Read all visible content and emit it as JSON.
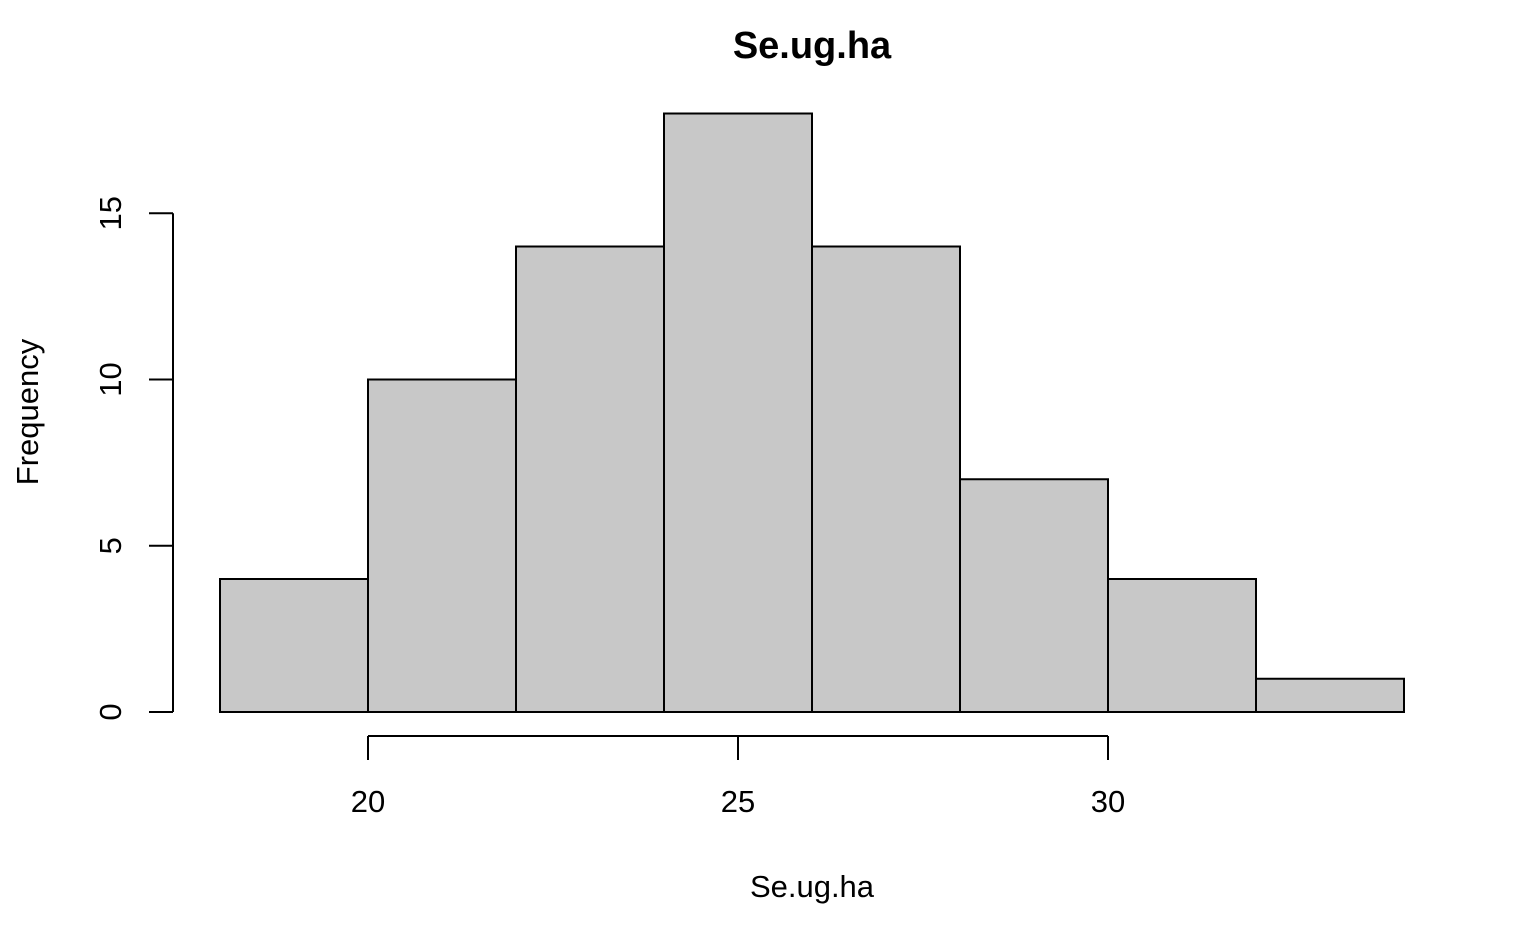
{
  "chart_data": {
    "type": "histogram",
    "title": "Se.ug.ha",
    "xlabel": "Se.ug.ha",
    "ylabel": "Frequency",
    "bins": [
      {
        "start": 18,
        "end": 20,
        "count": 4
      },
      {
        "start": 20,
        "end": 22,
        "count": 10
      },
      {
        "start": 22,
        "end": 24,
        "count": 14
      },
      {
        "start": 24,
        "end": 26,
        "count": 18
      },
      {
        "start": 26,
        "end": 28,
        "count": 14
      },
      {
        "start": 28,
        "end": 30,
        "count": 7
      },
      {
        "start": 30,
        "end": 32,
        "count": 4
      },
      {
        "start": 32,
        "end": 34,
        "count": 1
      }
    ],
    "xticks": [
      20,
      25,
      30
    ],
    "yticks": [
      0,
      5,
      10,
      15
    ],
    "grid": false,
    "colors": {
      "bar_fill": "#c8c8c8",
      "bar_stroke": "#000000"
    }
  }
}
